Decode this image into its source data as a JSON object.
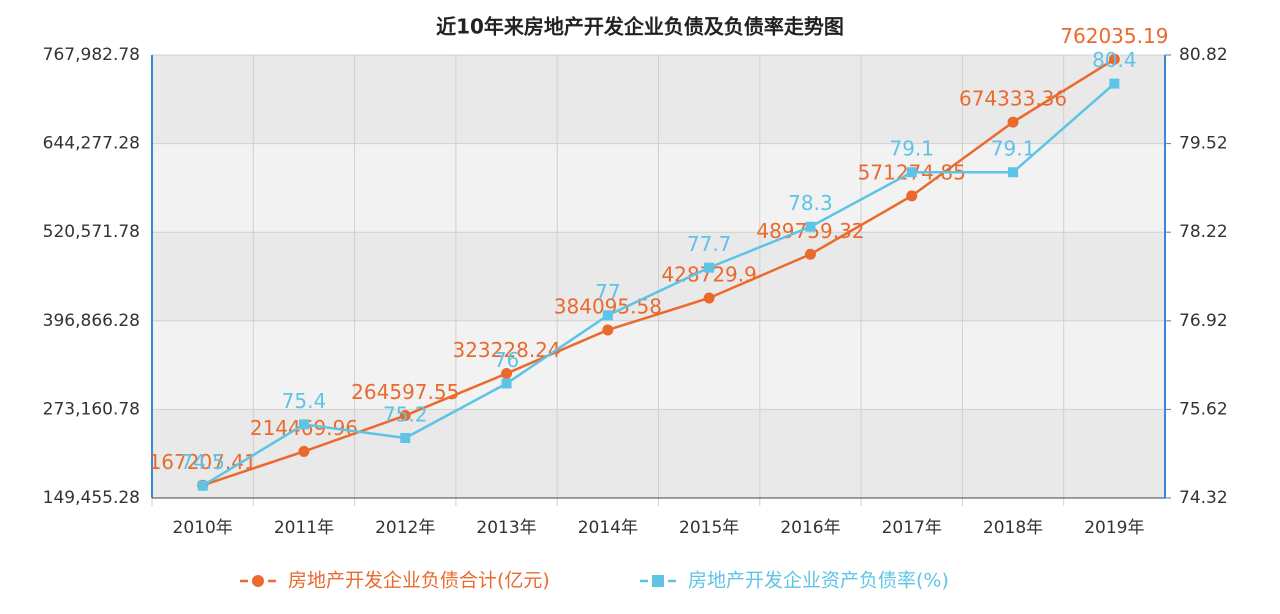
{
  "chart_data": {
    "type": "line",
    "title": "近10年来房地产开发企业负债及负债率走势图",
    "categories": [
      "2010年",
      "2011年",
      "2012年",
      "2013年",
      "2014年",
      "2015年",
      "2016年",
      "2017年",
      "2018年",
      "2019年"
    ],
    "series": [
      {
        "name": "房地产开发企业负债合计(亿元)",
        "color": "#ea6a2e",
        "marker": "circle",
        "values": [
          167207.41,
          214469.96,
          264597.55,
          323228.24,
          384095.58,
          428729.9,
          489759.32,
          571274.85,
          674333.36,
          762035.19
        ]
      },
      {
        "name": "房地产开发企业资产负债率(%)",
        "color": "#5ec4e6",
        "marker": "square",
        "axis": "y2",
        "values": [
          74.5,
          75.4,
          75.2,
          76,
          77,
          77.7,
          78.3,
          79.1,
          79.1,
          80.4
        ]
      }
    ],
    "ylim": [
      149455.28,
      767982.78
    ],
    "yticks": [
      {
        "value": 149455.28,
        "label": "149,455.28"
      },
      {
        "value": 273160.78,
        "label": "273,160.78"
      },
      {
        "value": 396866.28,
        "label": "396,866.28"
      },
      {
        "value": 520571.78,
        "label": "520,571.78"
      },
      {
        "value": 644277.28,
        "label": "644,277.28"
      },
      {
        "value": 767982.78,
        "label": "767,982.78"
      }
    ],
    "y2lim": [
      74.32,
      80.82
    ],
    "y2ticks": [
      74.32,
      75.62,
      76.92,
      78.22,
      79.52,
      80.82
    ],
    "grid": true,
    "legend": "bottom"
  }
}
